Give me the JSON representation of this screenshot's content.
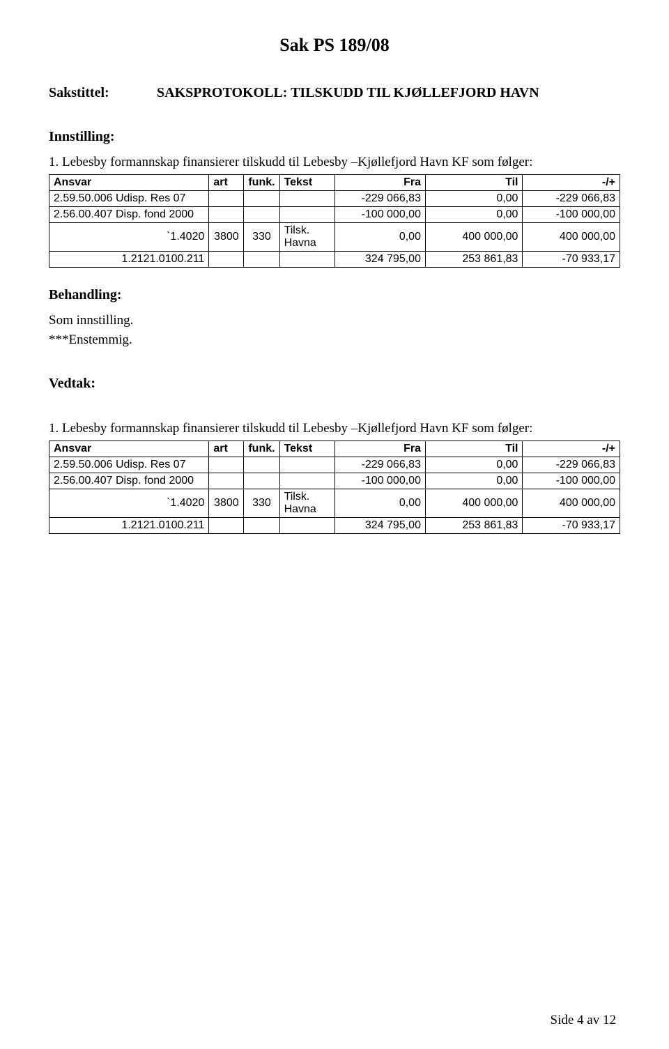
{
  "page_title": "Sak PS  189/08",
  "sakstittel_label": "Sakstittel:",
  "sakstittel_value": "SAKSPROTOKOLL: TILSKUDD TIL KJØLLEFJORD HAVN",
  "innstilling_label": "Innstilling:",
  "innstilling_text": "1. Lebesby formannskap finansierer tilskudd til Lebesby –Kjøllefjord Havn KF  som følger:",
  "behandling_label": "Behandling:",
  "behandling_lines": [
    "Som innstilling.",
    "***Enstemmig."
  ],
  "vedtak_label": "Vedtak:",
  "vedtak_text": "1. Lebesby formannskap finansierer tilskudd til Lebesby –Kjøllefjord Havn KF  som følger:",
  "footer": "Side 4 av 12",
  "table": {
    "header": [
      "Ansvar",
      "art",
      "funk.",
      "Tekst",
      "Fra",
      "Til",
      "-/+"
    ],
    "col_widths": [
      "230",
      "50",
      "50",
      "80",
      "130",
      "140",
      "140"
    ],
    "header_align": [
      "l",
      "l",
      "l",
      "l",
      "r",
      "r",
      "r"
    ],
    "rows": [
      {
        "cells": [
          "2.59.50.006 Udisp. Res 07",
          "",
          "",
          "",
          "-229 066,83",
          "0,00",
          "-229 066,83"
        ],
        "align": [
          "l",
          "l",
          "l",
          "l",
          "r",
          "r",
          "r"
        ]
      },
      {
        "cells": [
          "2.56.00.407 Disp. fond 2000",
          "",
          "",
          "",
          "-100 000,00",
          "0,00",
          "-100 000,00"
        ],
        "align": [
          "l",
          "l",
          "l",
          "l",
          "r",
          "r",
          "r"
        ]
      },
      {
        "cells": [
          "`1.4020",
          "3800",
          "330",
          "Tilsk. Havna",
          "0,00",
          "400 000,00",
          "400 000,00"
        ],
        "align": [
          "r",
          "c",
          "c",
          "l",
          "r",
          "r",
          "r"
        ]
      },
      {
        "cells": [
          "1.2121.0100.211",
          "",
          "",
          "",
          "324 795,00",
          "253 861,83",
          "-70 933,17"
        ],
        "align": [
          "r",
          "l",
          "l",
          "l",
          "r",
          "r",
          "r"
        ]
      }
    ]
  },
  "colors": {
    "bg": "#ffffff",
    "text": "#000000",
    "border": "#000000"
  }
}
